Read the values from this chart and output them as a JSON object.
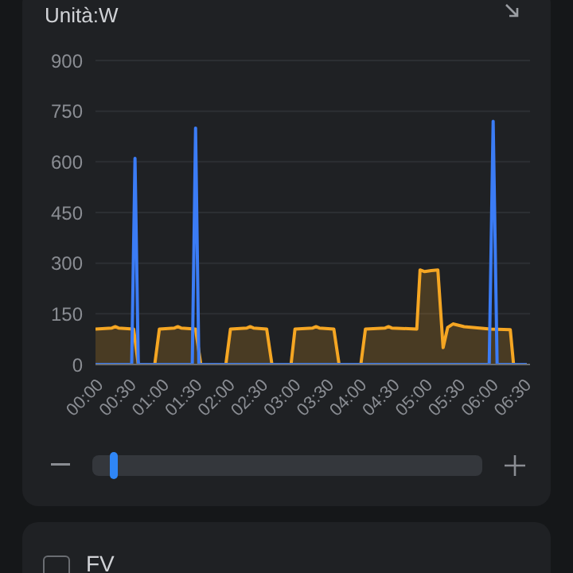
{
  "chart_data": {
    "type": "line",
    "ylabel": "Unità:W",
    "annotations": [
      "FV"
    ],
    "xlim": [
      0,
      6.6
    ],
    "xticks": [
      {
        "value": 0,
        "label": "00:00"
      },
      {
        "value": 0.5,
        "label": "00:30"
      },
      {
        "value": 1,
        "label": "01:00"
      },
      {
        "value": 1.5,
        "label": "01:30"
      },
      {
        "value": 2,
        "label": "02:00"
      },
      {
        "value": 2.5,
        "label": "02:30"
      },
      {
        "value": 3,
        "label": "03:00"
      },
      {
        "value": 3.5,
        "label": "03:30"
      },
      {
        "value": 4,
        "label": "04:00"
      },
      {
        "value": 4.5,
        "label": "04:30"
      },
      {
        "value": 5,
        "label": "05:00"
      },
      {
        "value": 5.5,
        "label": "05:30"
      },
      {
        "value": 6,
        "label": "06:00"
      },
      {
        "value": 6.5,
        "label": "06:30"
      }
    ],
    "ylim": [
      0,
      900
    ],
    "yticks": [
      0,
      150,
      300,
      450,
      600,
      750,
      900
    ],
    "grid": "y",
    "marker": "none",
    "series": [
      {
        "type": "area",
        "color": "#f5a623",
        "x": [
          0,
          0.25,
          0.3,
          0.35,
          0.58,
          0.65,
          0.9,
          0.97,
          1.2,
          1.25,
          1.3,
          1.52,
          1.6,
          1.98,
          2.05,
          2.3,
          2.35,
          2.4,
          2.6,
          2.68,
          2.97,
          3.03,
          3.3,
          3.35,
          3.4,
          3.62,
          3.7,
          4.03,
          4.1,
          4.4,
          4.45,
          4.5,
          4.88,
          4.93,
          5,
          5.1,
          5.2,
          5.28,
          5.35,
          5.43,
          5.6,
          6,
          6.3,
          6.35,
          6.55
        ],
        "values": [
          105,
          108,
          112,
          108,
          105,
          0,
          0,
          105,
          108,
          112,
          108,
          105,
          0,
          0,
          105,
          108,
          112,
          108,
          105,
          0,
          0,
          105,
          108,
          112,
          108,
          105,
          0,
          0,
          105,
          108,
          112,
          108,
          105,
          280,
          275,
          278,
          280,
          50,
          110,
          120,
          112,
          105,
          103,
          0,
          0
        ]
      },
      {
        "color": "#3b7cf5",
        "x": [
          0,
          0.55,
          0.6,
          0.65,
          1.47,
          1.52,
          1.57,
          5.98,
          6.04,
          6.1,
          6.55
        ],
        "values": [
          0,
          0,
          610,
          0,
          0,
          700,
          0,
          0,
          720,
          0,
          0
        ]
      }
    ]
  }
}
